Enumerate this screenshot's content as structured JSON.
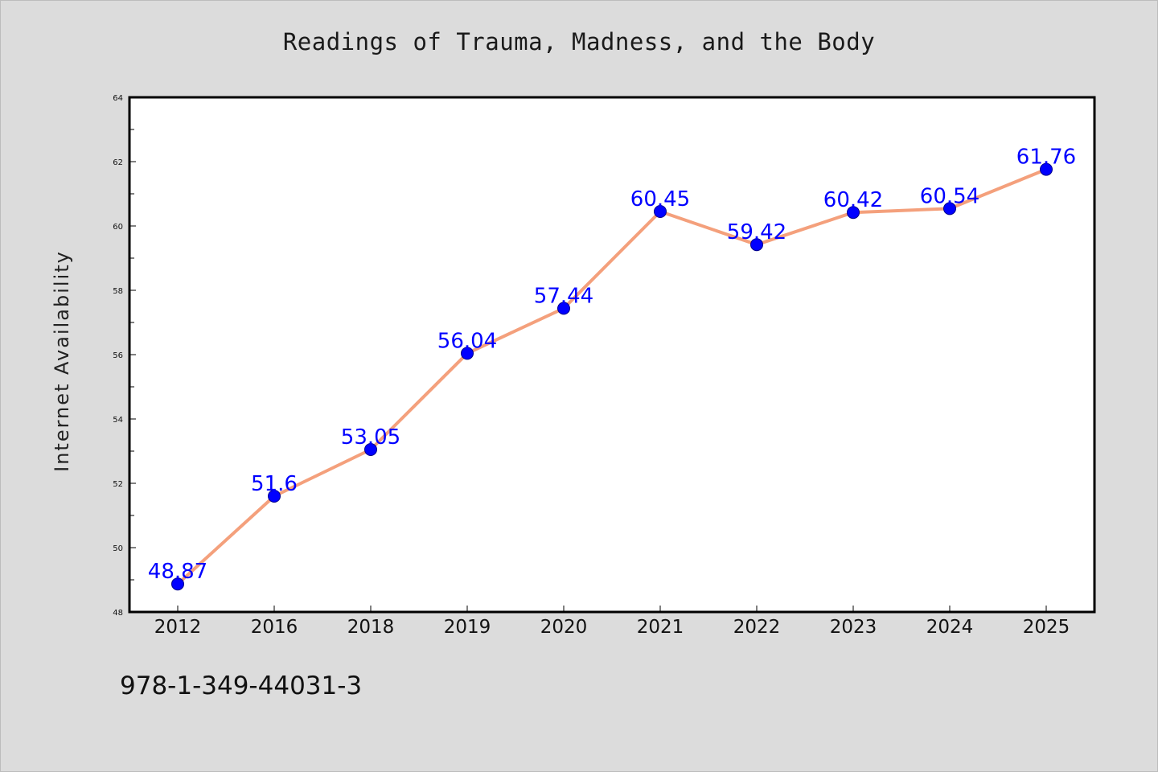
{
  "chart_data": {
    "type": "line",
    "title": "Readings of Trauma, Madness, and the Body",
    "xlabel": "",
    "ylabel": "Internet Availability",
    "categories": [
      "2012",
      "2016",
      "2018",
      "2019",
      "2020",
      "2021",
      "2022",
      "2023",
      "2024",
      "2025"
    ],
    "series": [
      {
        "values": [
          48.87,
          51.6,
          53.05,
          56.04,
          57.44,
          60.45,
          59.42,
          60.42,
          60.54,
          61.76
        ],
        "data_labels": [
          "48.87",
          "51.6",
          "53.05",
          "56.04",
          "57.44",
          "60.45",
          "59.42",
          "60.42",
          "60.54",
          "61.76"
        ]
      }
    ],
    "ylim": [
      48,
      64
    ],
    "yticks": [
      "48",
      "50",
      "52",
      "54",
      "56",
      "58",
      "60",
      "62",
      "64"
    ],
    "grid": false,
    "legend": "none",
    "colors": {
      "line": "#f4a07c",
      "marker": "#0000ff",
      "data_label": "#0000ff",
      "background": "#dcdcdc",
      "plot_area": "#ffffff"
    }
  },
  "footer": {
    "isbn": "978-1-349-44031-3"
  }
}
